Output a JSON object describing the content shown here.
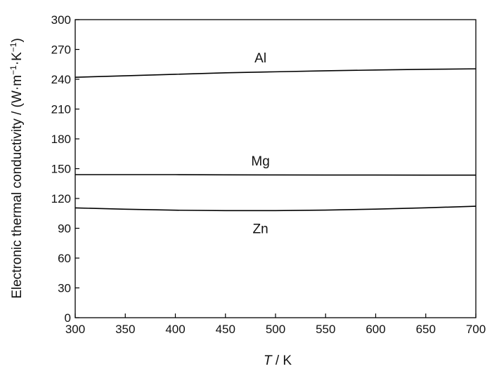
{
  "chart_data": {
    "type": "line",
    "title": "",
    "xlabel_italic": "T",
    "xlabel_rest": " / K",
    "ylabel_prefix": "Electronic thermal conductivity / (W·m",
    "ylabel_exp1": "−1",
    "ylabel_mid": "·K",
    "ylabel_exp2": "−1",
    "ylabel_suffix": ")",
    "xlim": [
      300,
      700
    ],
    "ylim": [
      0,
      300
    ],
    "xticks": [
      300,
      350,
      400,
      450,
      500,
      550,
      600,
      650,
      700
    ],
    "yticks": [
      0,
      30,
      60,
      90,
      120,
      150,
      180,
      210,
      240,
      270,
      300
    ],
    "grid": false,
    "legend": "none",
    "series": [
      {
        "name": "Al",
        "x": [
          300,
          350,
          400,
          450,
          500,
          550,
          600,
          650,
          700
        ],
        "y": [
          242,
          243.5,
          245,
          246.5,
          247.5,
          248.5,
          249.3,
          250,
          250.5
        ],
        "label_at": [
          485,
          262
        ]
      },
      {
        "name": "Mg",
        "x": [
          300,
          350,
          400,
          450,
          500,
          550,
          600,
          650,
          700
        ],
        "y": [
          144,
          144,
          144,
          143.8,
          143.7,
          143.6,
          143.6,
          143.5,
          143.5
        ],
        "label_at": [
          485,
          158
        ]
      },
      {
        "name": "Zn",
        "x": [
          300,
          350,
          400,
          450,
          500,
          550,
          600,
          650,
          700
        ],
        "y": [
          110.5,
          109.2,
          108.2,
          107.8,
          107.8,
          108.3,
          109.3,
          110.6,
          112.2
        ],
        "label_at": [
          485,
          90
        ]
      }
    ],
    "line_color": "#000000"
  }
}
